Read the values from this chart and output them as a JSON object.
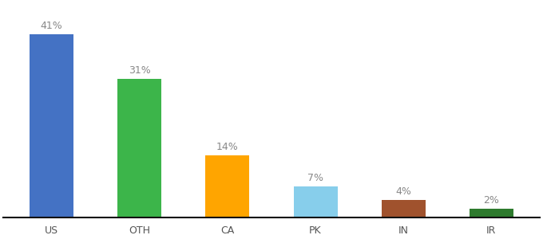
{
  "categories": [
    "US",
    "OTH",
    "CA",
    "PK",
    "IN",
    "IR"
  ],
  "values": [
    41,
    31,
    14,
    7,
    4,
    2
  ],
  "bar_colors": [
    "#4472C4",
    "#3CB54A",
    "#FFA500",
    "#87CEEB",
    "#A0522D",
    "#2D7A2D"
  ],
  "ylim": [
    0,
    48
  ],
  "background_color": "#ffffff",
  "label_fontsize": 9,
  "tick_fontsize": 9,
  "label_color": "#888888",
  "tick_color": "#555555",
  "bar_width": 0.5
}
